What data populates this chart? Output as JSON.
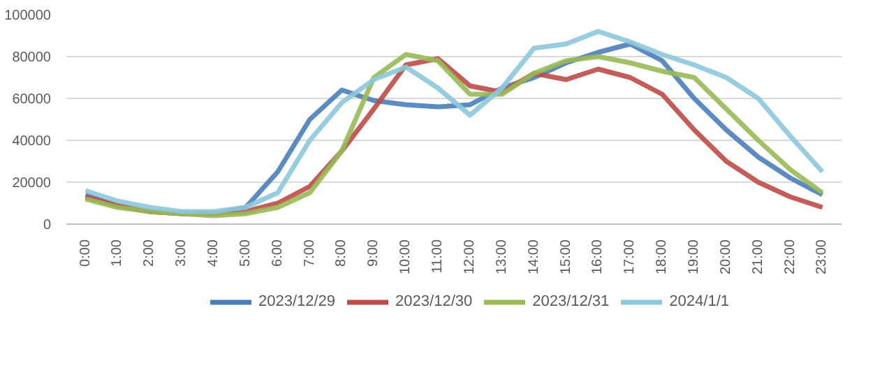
{
  "chart_data": {
    "type": "line",
    "categories": [
      "0:00",
      "1:00",
      "2:00",
      "3:00",
      "4:00",
      "5:00",
      "6:00",
      "7:00",
      "8:00",
      "9:00",
      "10:00",
      "11:00",
      "12:00",
      "13:00",
      "14:00",
      "15:00",
      "16:00",
      "17:00",
      "18:00",
      "19:00",
      "20:00",
      "21:00",
      "22:00",
      "23:00"
    ],
    "series": [
      {
        "name": "2023/12/29",
        "color": "#4a7ebb",
        "values": [
          14000,
          9000,
          6000,
          5000,
          5000,
          8000,
          25000,
          50000,
          64000,
          59000,
          57000,
          56000,
          57000,
          65000,
          70000,
          77000,
          82000,
          86000,
          78000,
          60000,
          45000,
          32000,
          22000,
          14000
        ]
      },
      {
        "name": "2023/12/30",
        "color": "#be4b48",
        "values": [
          13000,
          9000,
          6000,
          5000,
          5000,
          6000,
          10000,
          18000,
          35000,
          55000,
          76000,
          79000,
          66000,
          63000,
          72000,
          69000,
          74000,
          70000,
          62000,
          45000,
          30000,
          20000,
          13000,
          8000
        ]
      },
      {
        "name": "2023/12/31",
        "color": "#98b954",
        "values": [
          12000,
          8000,
          6000,
          5000,
          4000,
          5000,
          8000,
          15000,
          35000,
          70000,
          81000,
          78000,
          62000,
          62000,
          72000,
          78000,
          80000,
          77000,
          73000,
          70000,
          55000,
          40000,
          26000,
          15000
        ]
      },
      {
        "name": "2024/1/1",
        "color": "#8cc8dc",
        "values": [
          16000,
          11000,
          8000,
          6000,
          6000,
          8000,
          15000,
          40000,
          58000,
          69000,
          75000,
          65000,
          52000,
          65000,
          84000,
          86000,
          92000,
          87000,
          81000,
          76000,
          70000,
          60000,
          42000,
          25000
        ]
      }
    ],
    "ylim": [
      0,
      100000
    ],
    "yticks": [
      0,
      20000,
      40000,
      60000,
      80000,
      100000
    ],
    "grid": "y",
    "legend": "bottom",
    "line_style": "solid",
    "marker": "none"
  }
}
